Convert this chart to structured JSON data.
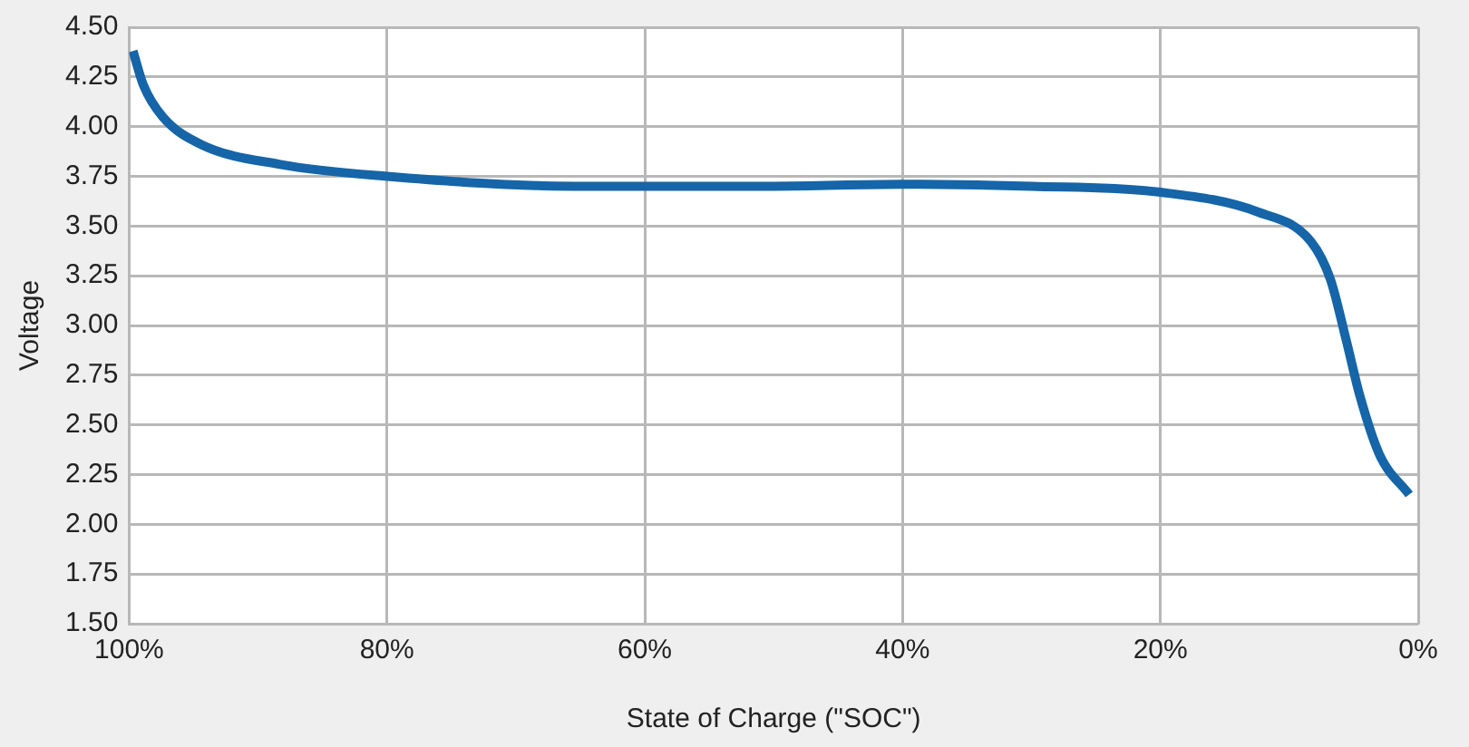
{
  "chart_data": {
    "type": "line",
    "xlabel": "State of Charge (\"SOC\")",
    "ylabel": "Voltage",
    "x": [
      99.7,
      98.9,
      97.4,
      94.4,
      88.3,
      80,
      65.5,
      50,
      40,
      30,
      20,
      12.4,
      8.3,
      6.8,
      5.6,
      4.5,
      3,
      0.7
    ],
    "series": [
      {
        "color": "#1565a8",
        "values": [
          4.38,
          4.21,
          4.05,
          3.91,
          3.81,
          3.75,
          3.7,
          3.7,
          3.71,
          3.7,
          3.67,
          3.57,
          3.42,
          3.23,
          2.93,
          2.64,
          2.35,
          2.15
        ]
      }
    ],
    "xlim": [
      100,
      0
    ],
    "xticks": [
      {
        "value": 100,
        "label": "100%"
      },
      {
        "value": 80,
        "label": "80%"
      },
      {
        "value": 60,
        "label": "60%"
      },
      {
        "value": 40,
        "label": "40%"
      },
      {
        "value": 20,
        "label": "20%"
      },
      {
        "value": 0,
        "label": "0%"
      }
    ],
    "ylim": [
      1.5,
      4.5
    ],
    "yticks": [
      {
        "value": 1.5,
        "label": "1.50"
      },
      {
        "value": 1.75,
        "label": "1.75"
      },
      {
        "value": 2,
        "label": "2.00"
      },
      {
        "value": 2.25,
        "label": "2.25"
      },
      {
        "value": 2.5,
        "label": "2.50"
      },
      {
        "value": 2.75,
        "label": "2.75"
      },
      {
        "value": 3,
        "label": "3.00"
      },
      {
        "value": 3.25,
        "label": "3.25"
      },
      {
        "value": 3.5,
        "label": "3.50"
      },
      {
        "value": 3.75,
        "label": "3.75"
      },
      {
        "value": 4,
        "label": "4.00"
      },
      {
        "value": 4.25,
        "label": "4.25"
      },
      {
        "value": 4.5,
        "label": "4.50"
      }
    ],
    "grid": true,
    "legend": false,
    "marker": "none",
    "line_style": "solid"
  }
}
